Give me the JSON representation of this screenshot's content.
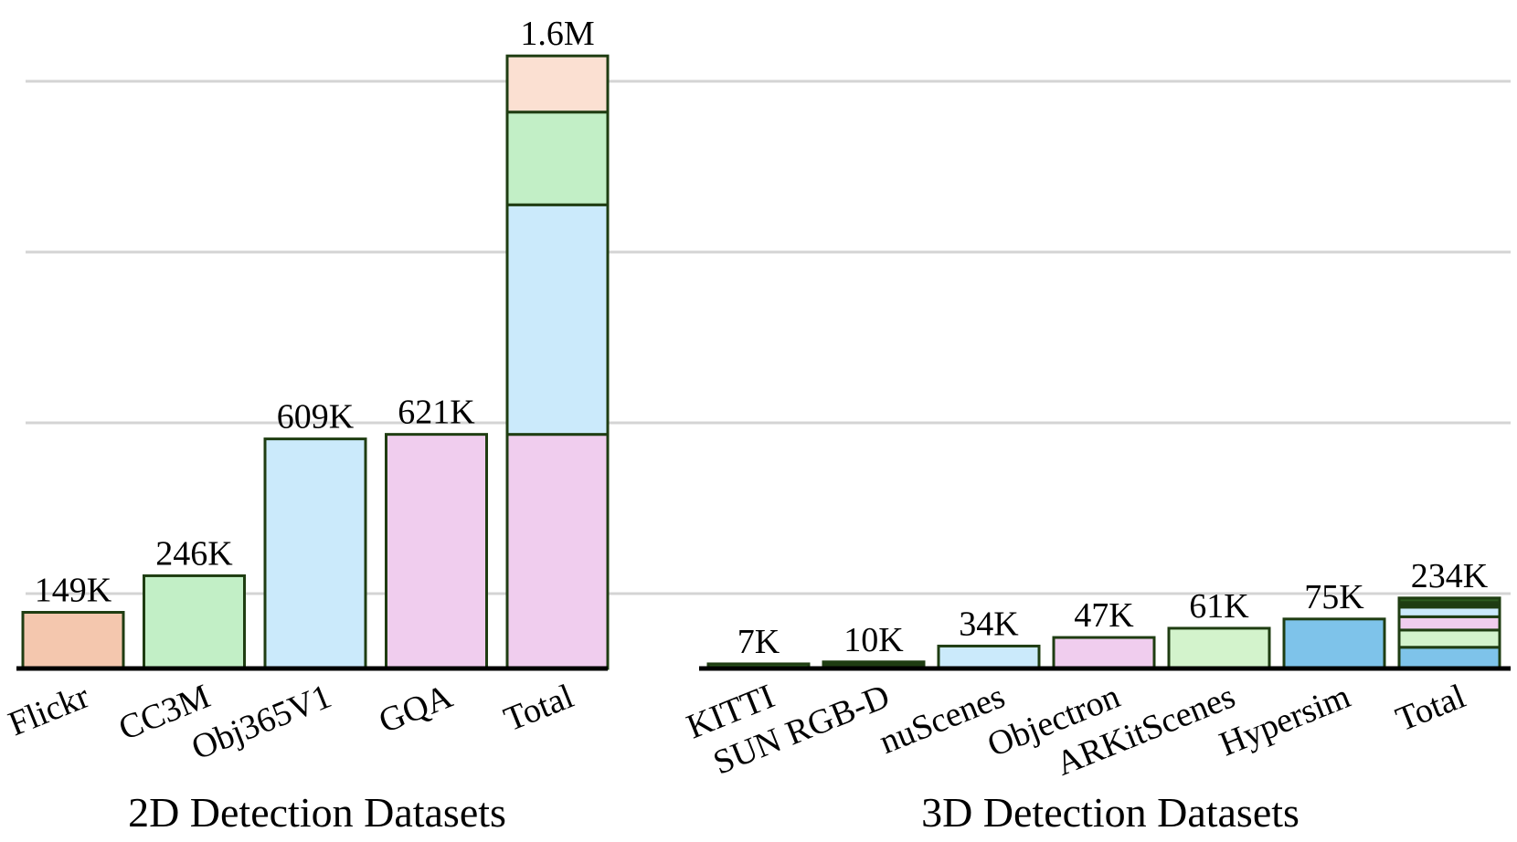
{
  "chart_data": [
    {
      "type": "bar",
      "xlabel": "2D Detection Datasets",
      "ylabel": "",
      "ylim": [
        0,
        1800
      ],
      "unit": "K images",
      "grid": true,
      "categories": [
        "Flickr",
        "CC3M",
        "Obj365V1",
        "GQA",
        "Total"
      ],
      "values": [
        149,
        246,
        609,
        621,
        1625
      ],
      "value_labels": [
        "149K",
        "246K",
        "609K",
        "621K",
        "1.6M"
      ],
      "colors": [
        "#f4c7ae",
        "#c2efc6",
        "#cbeafb",
        "#f0cdee",
        null
      ],
      "total_stack_bottom_to_top": [
        {
          "name": "GQA",
          "value": 621,
          "color": "#f0cdee"
        },
        {
          "name": "Obj365V1",
          "value": 609,
          "color": "#cbeafb"
        },
        {
          "name": "CC3M",
          "value": 246,
          "color": "#c2efc6"
        },
        {
          "name": "Flickr",
          "value": 149,
          "color": "#fbe0d2"
        }
      ]
    },
    {
      "type": "bar",
      "xlabel": "3D Detection Datasets",
      "ylabel": "",
      "ylim": [
        0,
        1800
      ],
      "unit": "K images",
      "grid": true,
      "categories": [
        "KITTI",
        "SUN RGB-D",
        "nuScenes",
        "Objectron",
        "ARKitScenes",
        "Hypersim",
        "Total"
      ],
      "values": [
        7,
        10,
        34,
        47,
        61,
        75,
        234
      ],
      "value_labels": [
        "7K",
        "10K",
        "34K",
        "47K",
        "61K",
        "75K",
        "234K"
      ],
      "colors": [
        "#2d5a1f",
        "#1f3d12",
        "#cbeafb",
        "#f0cdee",
        "#d3f3cc",
        "#7ec3ea",
        null
      ],
      "total_stack_bottom_to_top": [
        {
          "name": "Hypersim",
          "value": 75,
          "color": "#7ec3ea"
        },
        {
          "name": "ARKitScenes",
          "value": 61,
          "color": "#d3f3cc"
        },
        {
          "name": "Objectron",
          "value": 47,
          "color": "#f0cdee"
        },
        {
          "name": "nuScenes",
          "value": 34,
          "color": "#cbeafb"
        },
        {
          "name": "SUN RGB-D",
          "value": 10,
          "color": "#1f3d12"
        },
        {
          "name": "KITTI",
          "value": 7,
          "color": "#2d5a1f"
        }
      ]
    }
  ],
  "style": {
    "edge_color": "#1f3d12",
    "grid_color": "#d4d4d4",
    "baseline_color": "#000000"
  }
}
